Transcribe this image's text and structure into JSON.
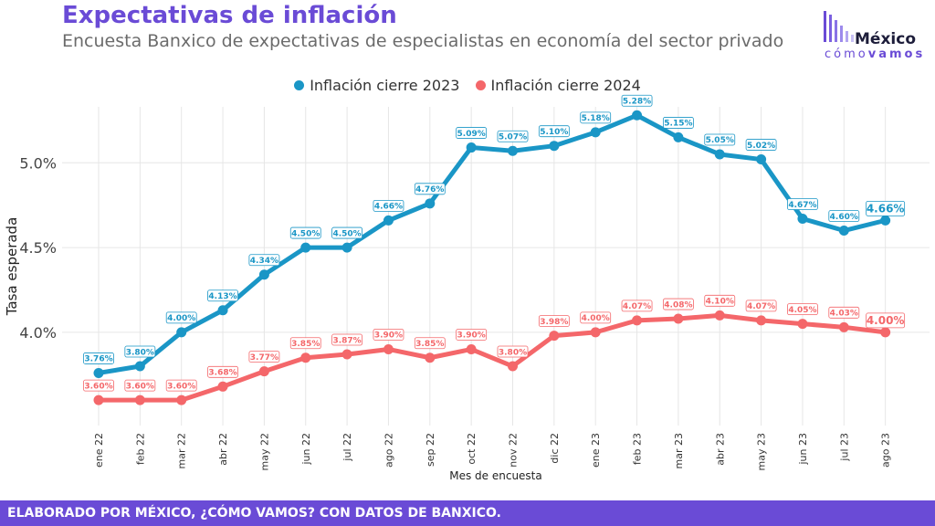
{
  "header": {
    "title": "Expectativas de inflación",
    "subtitle": "Encuesta Banxico de expectativas de especialistas en economía del sector privado"
  },
  "logo": {
    "word1": "México",
    "word2a": "cómo",
    "word2b": "vamos"
  },
  "footer": {
    "text": "ELABORADO POR MÉXICO, ¿CÓMO VAMOS? CON DATOS DE BANXICO."
  },
  "colors": {
    "accent": "#6a4bd6",
    "series_2023": "#1a96c6",
    "series_2024": "#f4676a",
    "grid": "#e6e6e6"
  },
  "chart_data": {
    "type": "line",
    "xlabel": "Mes de encuesta",
    "ylabel": "Tasa esperada",
    "ylim": [
      3.45,
      5.33
    ],
    "yticks": [
      4.0,
      4.5,
      5.0
    ],
    "ytick_labels": [
      "4.0%",
      "4.5%",
      "5.0%"
    ],
    "legend_position": "top-center",
    "grid": true,
    "categories": [
      "ene 22",
      "feb 22",
      "mar 22",
      "abr 22",
      "may 22",
      "jun 22",
      "jul 22",
      "ago 22",
      "sep 22",
      "oct 22",
      "nov 22",
      "dic 22",
      "ene 23",
      "feb 23",
      "mar 23",
      "abr 23",
      "may 23",
      "jun 23",
      "jul 23",
      "ago 23"
    ],
    "series": [
      {
        "name": "Inflación cierre 2023",
        "color": "#1a96c6",
        "values": [
          3.76,
          3.8,
          4.0,
          4.13,
          4.34,
          4.5,
          4.5,
          4.66,
          4.76,
          5.09,
          5.07,
          5.1,
          5.18,
          5.28,
          5.15,
          5.05,
          5.02,
          4.67,
          4.6,
          4.66
        ],
        "labels": [
          "3.76%",
          "3.80%",
          "4.00%",
          "4.13%",
          "4.34%",
          "4.50%",
          "4.50%",
          "4.66%",
          "4.76%",
          "5.09%",
          "5.07%",
          "5.10%",
          "5.18%",
          "5.28%",
          "5.15%",
          "5.05%",
          "5.02%",
          "4.67%",
          "4.60%",
          "4.66%"
        ]
      },
      {
        "name": "Inflación cierre 2024",
        "color": "#f4676a",
        "values": [
          3.6,
          3.6,
          3.6,
          3.68,
          3.77,
          3.85,
          3.87,
          3.9,
          3.85,
          3.9,
          3.8,
          3.98,
          4.0,
          4.07,
          4.08,
          4.1,
          4.07,
          4.05,
          4.03,
          4.0
        ],
        "labels": [
          "3.60%",
          "3.60%",
          "3.60%",
          "3.68%",
          "3.77%",
          "3.85%",
          "3.87%",
          "3.90%",
          "3.85%",
          "3.90%",
          "3.80%",
          "3.98%",
          "4.00%",
          "4.07%",
          "4.08%",
          "4.10%",
          "4.07%",
          "4.05%",
          "4.03%",
          "4.00%"
        ]
      }
    ]
  }
}
